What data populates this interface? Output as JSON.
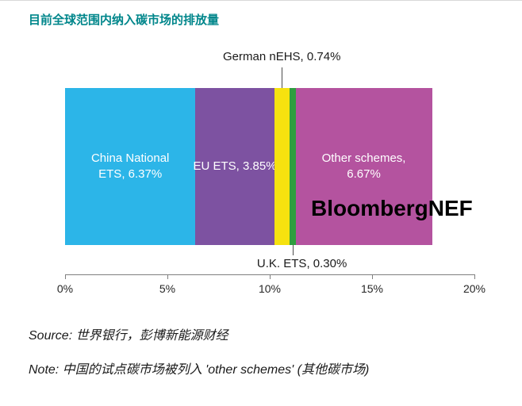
{
  "page": {
    "title": "目前全球范围内纳入碳市场的排放量",
    "watermark": "BloombergNEF",
    "source": "Source: 世界银行，彭博新能源财经",
    "note": "Note: 中国的试点碳市场被列入 'other schemes' (其他碳市场)"
  },
  "chart_data": {
    "type": "bar",
    "variant": "horizontal-stacked",
    "title": "目前全球范围内纳入碳市场的排放量",
    "xlabel": "",
    "ylabel": "",
    "xlim": [
      0,
      20
    ],
    "grid": false,
    "legend": "none",
    "x_ticks": [
      {
        "value": 0,
        "label": "0%"
      },
      {
        "value": 5,
        "label": "5%"
      },
      {
        "value": 10,
        "label": "10%"
      },
      {
        "value": 15,
        "label": "15%"
      },
      {
        "value": 20,
        "label": "20%"
      }
    ],
    "segments": [
      {
        "name": "China National ETS",
        "value": 6.37,
        "color": "#2cb5e8",
        "label_lines": [
          "China National",
          "ETS, 6.37%"
        ],
        "label_placement": "inside"
      },
      {
        "name": "EU ETS",
        "value": 3.85,
        "color": "#7d52a1",
        "label_lines": [
          "EU ETS, 3.85%"
        ],
        "label_placement": "inside"
      },
      {
        "name": "German nEHS",
        "value": 0.74,
        "color": "#f6e20f",
        "label_lines": [
          "German nEHS, 0.74%"
        ],
        "label_placement": "callout-top"
      },
      {
        "name": "U.K. ETS",
        "value": 0.3,
        "color": "#2f9e3f",
        "label_lines": [
          "U.K. ETS, 0.30%"
        ],
        "label_placement": "callout-bottom"
      },
      {
        "name": "Other schemes",
        "value": 6.67,
        "color": "#b4539f",
        "label_lines": [
          "Other schemes,",
          "6.67%"
        ],
        "label_placement": "inside"
      }
    ]
  }
}
